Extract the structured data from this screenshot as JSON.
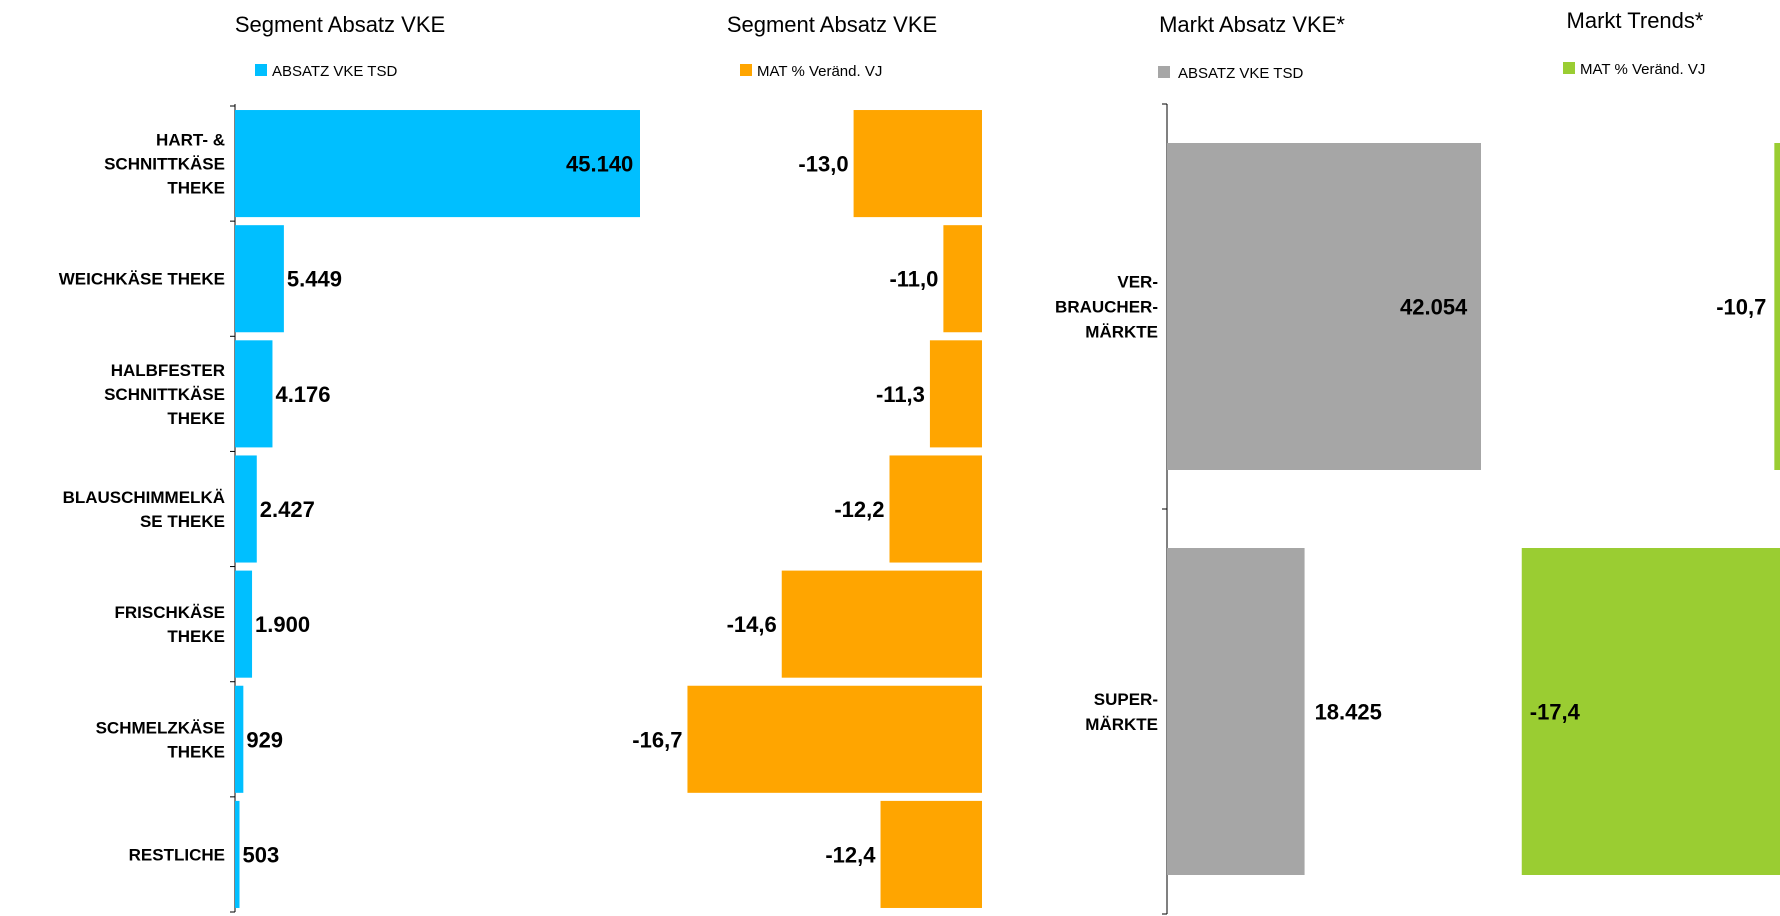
{
  "chart_data": [
    {
      "type": "bar",
      "orientation": "horizontal",
      "title": "Segment Absatz VKE",
      "legend": "ABSATZ VKE TSD",
      "color": "#00bfff",
      "categories": [
        [
          "HART- &",
          "SCHNITTKÄSE",
          "THEKE"
        ],
        [
          "WEICHKÄSE THEKE"
        ],
        [
          "HALBFESTER",
          "SCHNITTKÄSE",
          "THEKE"
        ],
        [
          "BLAUSCHIMMELKÄ",
          "SE THEKE"
        ],
        [
          "FRISCHKÄSE",
          "THEKE"
        ],
        [
          "SCHMELZKÄSE",
          "THEKE"
        ],
        [
          "RESTLICHE"
        ]
      ],
      "values": [
        45140,
        5449,
        4176,
        2427,
        1900,
        929,
        503
      ],
      "value_labels": [
        "45.140",
        "5.449",
        "4.176",
        "2.427",
        "1.900",
        "929",
        "503"
      ],
      "xlim": [
        0,
        100000
      ]
    },
    {
      "type": "bar",
      "orientation": "horizontal",
      "title": "Segment Absatz VKE",
      "legend": "MAT % Veränd. VJ",
      "color": "#ffa500",
      "values": [
        -13.0,
        -11.0,
        -11.3,
        -12.2,
        -14.6,
        -16.7,
        -12.4
      ],
      "value_labels": [
        "-13,0",
        "-11,0",
        "-11,3",
        "-12,2",
        "-14,6",
        "-16,7",
        "-12,4"
      ]
    },
    {
      "type": "bar",
      "orientation": "horizontal",
      "title": "Markt Absatz VKE*",
      "legend": "ABSATZ VKE TSD",
      "color": "#a6a6a6",
      "categories": [
        [
          "VER-",
          "BRAUCHER-",
          "MÄRKTE"
        ],
        [
          "SUPER-",
          "MÄRKTE"
        ]
      ],
      "values": [
        42054,
        18425
      ],
      "value_labels": [
        "42.054",
        "18.425"
      ]
    },
    {
      "type": "bar",
      "orientation": "horizontal",
      "title": "Markt Trends*",
      "legend": "MAT % Veränd. VJ",
      "color": "#9acd32",
      "values": [
        -10.7,
        -17.4
      ],
      "value_labels": [
        "-10,7",
        "-17,4"
      ]
    }
  ]
}
